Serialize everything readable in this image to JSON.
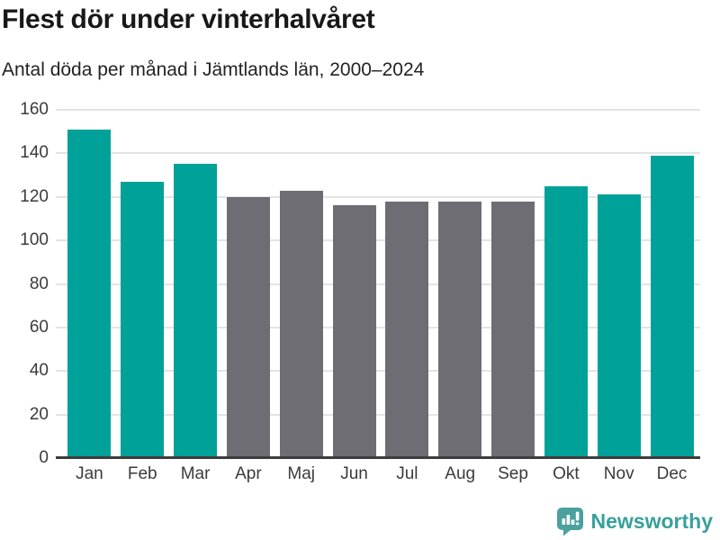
{
  "header": {
    "title": "Flest dör under vinterhalvåret",
    "subtitle": "Antal döda per månad i Jämtlands län, 2000–2024"
  },
  "branding": {
    "name": "Newsworthy",
    "logo_icon": "newsworthy-speech-bubble-bar-chart-icon"
  },
  "colors": {
    "bar_winter": "#00a199",
    "bar_summer": "#6e6d73",
    "gridline": "#e4e4e4",
    "zero_axis": "#3d3d3d",
    "title_text": "#181818",
    "tick_text": "#3b3b3b",
    "brand_teal": "#38a09c",
    "logo_fill": "#4aa19e"
  },
  "chart_data": {
    "type": "bar",
    "title": "Flest dör under vinterhalvåret",
    "subtitle": "Antal döda per månad i Jämtlands län, 2000–2024",
    "categories": [
      "Jan",
      "Feb",
      "Mar",
      "Apr",
      "Maj",
      "Jun",
      "Jul",
      "Aug",
      "Sep",
      "Okt",
      "Nov",
      "Dec"
    ],
    "values": [
      151,
      127,
      135,
      120,
      123,
      116,
      118,
      118,
      118,
      125,
      121,
      139
    ],
    "highlighted_winter_months": [
      true,
      true,
      true,
      false,
      false,
      false,
      false,
      false,
      false,
      true,
      true,
      true
    ],
    "xlabel": "",
    "ylabel": "",
    "ylim": [
      0,
      160
    ],
    "yticks": [
      0,
      20,
      40,
      60,
      80,
      100,
      120,
      140,
      160
    ],
    "grid": "horizontal",
    "legend": "none"
  }
}
